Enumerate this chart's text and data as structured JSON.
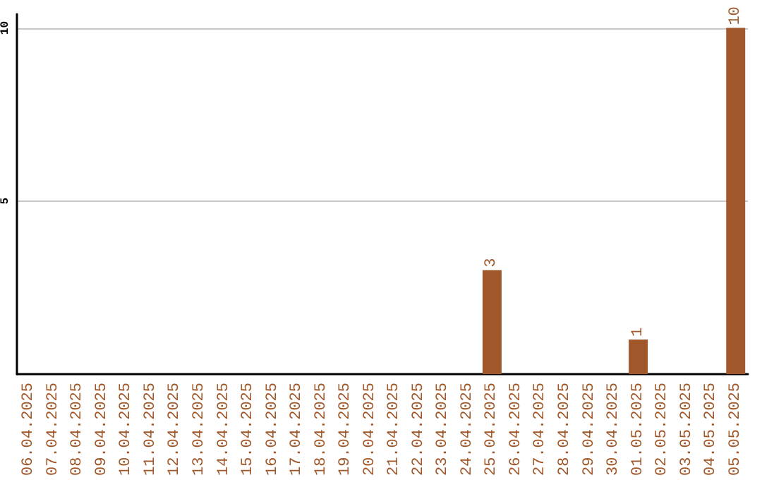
{
  "chart_data": {
    "type": "bar",
    "categories": [
      "06.04.2025",
      "07.04.2025",
      "08.04.2025",
      "09.04.2025",
      "10.04.2025",
      "11.04.2025",
      "12.04.2025",
      "13.04.2025",
      "14.04.2025",
      "15.04.2025",
      "16.04.2025",
      "17.04.2025",
      "18.04.2025",
      "19.04.2025",
      "20.04.2025",
      "21.04.2025",
      "22.04.2025",
      "23.04.2025",
      "24.04.2025",
      "25.04.2025",
      "26.04.2025",
      "27.04.2025",
      "28.04.2025",
      "29.04.2025",
      "30.04.2025",
      "01.05.2025",
      "02.05.2025",
      "03.05.2025",
      "04.05.2025",
      "05.05.2025"
    ],
    "values": [
      0,
      0,
      0,
      0,
      0,
      0,
      0,
      0,
      0,
      0,
      0,
      0,
      0,
      0,
      0,
      0,
      0,
      0,
      0,
      3,
      0,
      0,
      0,
      0,
      0,
      1,
      0,
      0,
      0,
      10
    ],
    "value_labels": [
      null,
      null,
      null,
      null,
      null,
      null,
      null,
      null,
      null,
      null,
      null,
      null,
      null,
      null,
      null,
      null,
      null,
      null,
      null,
      "3",
      null,
      null,
      null,
      null,
      null,
      "1",
      null,
      null,
      null,
      "10"
    ],
    "color": "#a0582a",
    "ylim": [
      0,
      10.4
    ],
    "yticks": [
      5,
      10
    ],
    "grid": "y"
  }
}
